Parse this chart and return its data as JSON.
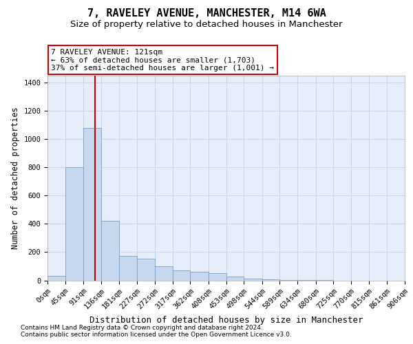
{
  "title": "7, RAVELEY AVENUE, MANCHESTER, M14 6WA",
  "subtitle": "Size of property relative to detached houses in Manchester",
  "xlabel": "Distribution of detached houses by size in Manchester",
  "ylabel": "Number of detached properties",
  "footnote1": "Contains HM Land Registry data © Crown copyright and database right 2024.",
  "footnote2": "Contains public sector information licensed under the Open Government Licence v3.0.",
  "bin_edges": [
    0,
    45,
    91,
    136,
    181,
    227,
    272,
    317,
    362,
    408,
    453,
    498,
    544,
    589,
    634,
    680,
    725,
    770,
    815,
    861,
    906
  ],
  "bar_heights": [
    30,
    800,
    1080,
    420,
    175,
    155,
    100,
    70,
    60,
    50,
    25,
    10,
    5,
    2,
    1,
    1,
    0,
    0,
    0,
    0
  ],
  "bar_color": "#c8d9ef",
  "bar_edge_color": "#7aa0c8",
  "grid_color": "#c8d4e8",
  "bg_color": "#e6ecf8",
  "red_line_x": 121,
  "red_line_color": "#cc0000",
  "annotation_line1": "7 RAVELEY AVENUE: 121sqm",
  "annotation_line2": "← 63% of detached houses are smaller (1,703)",
  "annotation_line3": "37% of semi-detached houses are larger (1,001) →",
  "annotation_box_facecolor": "#ffffff",
  "annotation_box_edgecolor": "#cc0000",
  "ylim_max": 1450,
  "yticks": [
    0,
    200,
    400,
    600,
    800,
    1000,
    1200,
    1400
  ],
  "title_fontsize": 11,
  "subtitle_fontsize": 9.5,
  "xlabel_fontsize": 9,
  "ylabel_fontsize": 8.5,
  "tick_fontsize": 7.5,
  "annot_fontsize": 8,
  "footnote_fontsize": 6.5
}
